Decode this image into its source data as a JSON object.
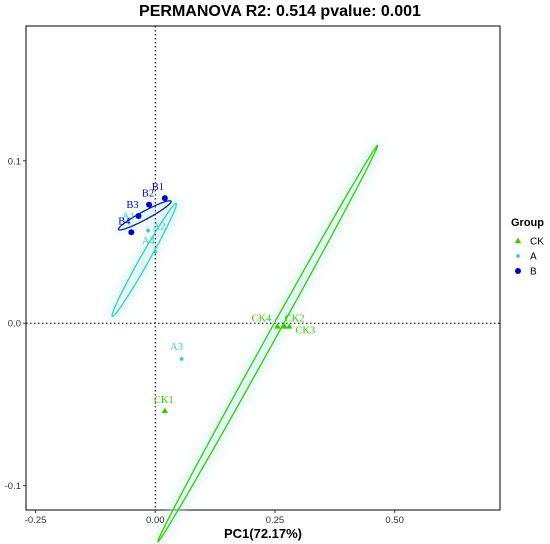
{
  "chart_data": {
    "type": "scatter",
    "title": "PERMANOVA R2: 0.514 pvalue: 0.001",
    "xlabel": "PC1(72.17%)",
    "ylabel": "",
    "xlim": [
      -0.27,
      0.72
    ],
    "ylim": [
      -0.115,
      0.183
    ],
    "x_ticks": [
      -0.25,
      0.0,
      0.25,
      0.5
    ],
    "x_tick_labels": [
      "-0.25",
      "0.00",
      "0.25",
      "0.50"
    ],
    "y_ticks": [
      -0.1,
      0.0,
      0.1
    ],
    "y_tick_labels": [
      "-0.1",
      "0.0",
      "0.1"
    ],
    "reference_lines": {
      "x": 0,
      "y": 0,
      "style": "dotted"
    },
    "grid": false,
    "legend_position": "right",
    "legend_title": "Group",
    "series": [
      {
        "name": "CK",
        "color": "#33cc00",
        "marker": "triangle",
        "points": [
          {
            "label": "CK1",
            "x": 0.02,
            "y": -0.054
          },
          {
            "label": "CK2",
            "x": 0.27,
            "y": -0.002
          },
          {
            "label": "CK3",
            "x": 0.28,
            "y": -0.002
          },
          {
            "label": "CK4",
            "x": 0.255,
            "y": -0.002
          }
        ],
        "ellipse": {
          "cx": 0.235,
          "cy": -0.0125,
          "rx": 0.473,
          "ry": 0.0042,
          "angle_deg": 61.0
        }
      },
      {
        "name": "A",
        "color": "#33cccc",
        "marker": "diamond",
        "points": [
          {
            "label": "A1",
            "x": -0.05,
            "y": 0.056
          },
          {
            "label": "A2",
            "x": -0.015,
            "y": 0.057
          },
          {
            "label": "A3",
            "x": 0.055,
            "y": -0.022
          },
          {
            "label": "A4",
            "x": 0.0,
            "y": 0.044
          }
        ],
        "ellipse": {
          "cx": -0.023,
          "cy": 0.039,
          "rx": 0.1355,
          "ry": 0.0045,
          "angle_deg": 60.5
        }
      },
      {
        "name": "B",
        "color": "#0000cc",
        "marker": "circle",
        "points": [
          {
            "label": "B1",
            "x": 0.02,
            "y": 0.077
          },
          {
            "label": "B2",
            "x": -0.013,
            "y": 0.073
          },
          {
            "label": "B3",
            "x": -0.035,
            "y": 0.066
          },
          {
            "label": "B4",
            "x": -0.05,
            "y": 0.056
          }
        ],
        "ellipse": {
          "cx": -0.022,
          "cy": 0.0664,
          "rx": 0.0623,
          "ry": 0.0041,
          "angle_deg": 28.3
        }
      }
    ]
  }
}
